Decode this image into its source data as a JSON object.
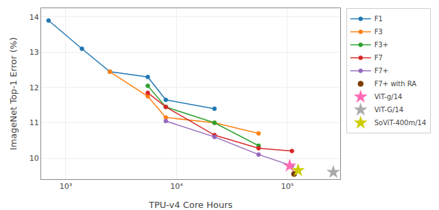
{
  "chart_data": {
    "type": "line",
    "xlabel": "TPU-v4 Core Hours",
    "ylabel": "ImageNet Top-1 Error (%)",
    "log": "x",
    "xlim": [
      600,
      300000
    ],
    "xticks": [
      {
        "value": 1000,
        "label": "10³"
      },
      {
        "value": 10000,
        "label": "10⁴"
      },
      {
        "value": 100000,
        "label": "10⁵"
      }
    ],
    "ylim": [
      9.4,
      14.25
    ],
    "yticks": [
      10,
      11,
      12,
      13,
      14
    ],
    "grid": true,
    "legend": "right",
    "series": [
      {
        "name": "F1",
        "type": "line",
        "color": "#1f77b4",
        "marker": "circle",
        "line_style": "solid",
        "x": [
          700,
          1400,
          2500,
          5500,
          8000,
          22000
        ],
        "values": [
          13.9,
          13.1,
          12.45,
          12.3,
          11.65,
          11.4
        ]
      },
      {
        "name": "F3",
        "type": "line",
        "color": "#ff7f0e",
        "marker": "circle",
        "line_style": "solid",
        "x": [
          2500,
          5500,
          8000,
          22000,
          55000
        ],
        "values": [
          12.45,
          11.75,
          11.15,
          11.0,
          10.7
        ]
      },
      {
        "name": "F3+",
        "type": "line",
        "color": "#2ca02c",
        "marker": "circle",
        "line_style": "solid",
        "x": [
          5500,
          8000,
          22000,
          55000
        ],
        "values": [
          12.05,
          11.45,
          11.0,
          10.35
        ]
      },
      {
        "name": "F7",
        "type": "line",
        "color": "#d62728",
        "marker": "circle",
        "line_style": "solid",
        "x": [
          5500,
          8000,
          22000,
          55000,
          110000
        ],
        "values": [
          11.85,
          11.45,
          10.65,
          10.28,
          10.2
        ]
      },
      {
        "name": "F7+",
        "type": "line",
        "color": "#9467bd",
        "marker": "circle",
        "line_style": "solid",
        "x": [
          8000,
          22000,
          55000,
          110000
        ],
        "values": [
          11.05,
          10.6,
          10.1,
          9.78
        ]
      },
      {
        "name": "F7+ with RA",
        "type": "scatter",
        "color": "#7b3f00",
        "marker": "circle",
        "x": [
          115000
        ],
        "values": [
          9.55
        ]
      },
      {
        "name": "ViT-g/14",
        "type": "scatter",
        "color": "#ff69b4",
        "marker": "star",
        "x": [
          105000
        ],
        "values": [
          9.78
        ]
      },
      {
        "name": "ViT-G/14",
        "type": "scatter",
        "color": "#aaaaaa",
        "marker": "star",
        "x": [
          260000
        ],
        "values": [
          9.6
        ]
      },
      {
        "name": "SoViT-400m/14",
        "type": "scatter",
        "color": "#cccc00",
        "marker": "star",
        "x": [
          125000
        ],
        "values": [
          9.65
        ]
      }
    ]
  }
}
